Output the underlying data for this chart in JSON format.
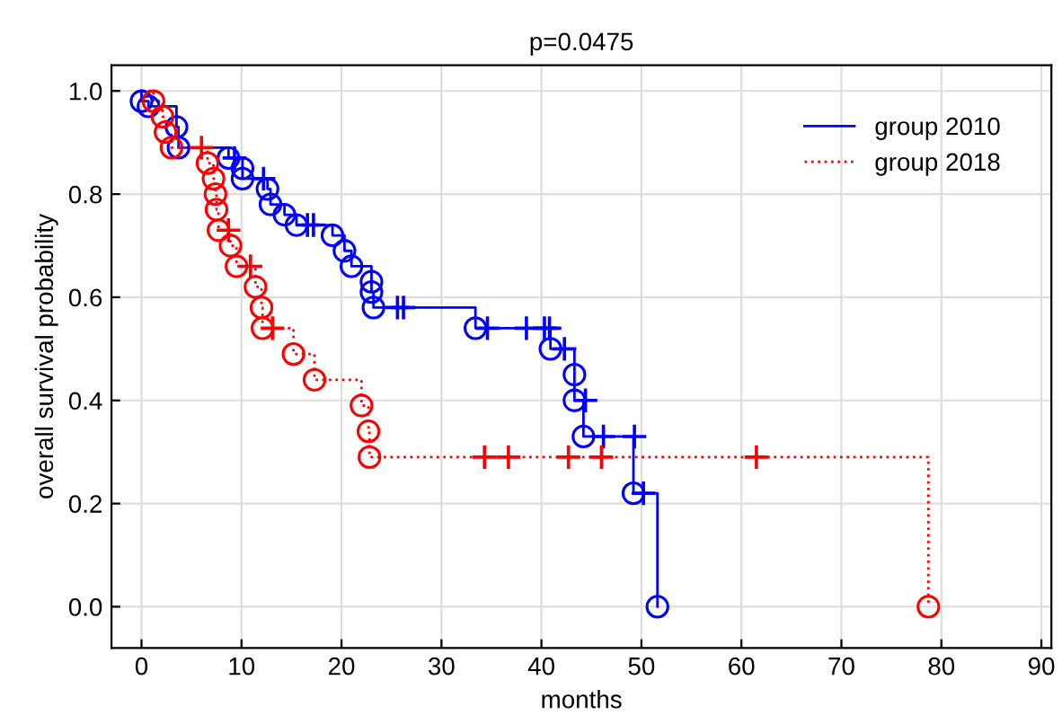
{
  "chart_data": {
    "type": "step",
    "title": "p=0.0475",
    "xlabel": "months",
    "ylabel": "overall survival probability",
    "xlim": [
      -3,
      91
    ],
    "ylim": [
      -0.08,
      1.05
    ],
    "xticks": [
      0,
      10,
      20,
      30,
      40,
      50,
      60,
      70,
      80,
      90
    ],
    "yticks": [
      {
        "value": 0,
        "label": "0.0"
      },
      {
        "value": 0.2,
        "label": "0.2"
      },
      {
        "value": 0.4,
        "label": "0.4"
      },
      {
        "value": 0.6,
        "label": "0.6"
      },
      {
        "value": 0.8,
        "label": "0.8"
      },
      {
        "value": 1,
        "label": "1.0"
      }
    ],
    "grid": true,
    "legend": "top right",
    "series": [
      {
        "name": "group 2010",
        "color": "#0000ff",
        "line_style": "solid",
        "marker": "none",
        "x": [
          0,
          0,
          0.7,
          3.5,
          3.7,
          8.7,
          10.1,
          10.1,
          12.6,
          12.9,
          14.3,
          15.5,
          19.1,
          20.3,
          21,
          23,
          23,
          23.2,
          33.4,
          40.9,
          43.3,
          43.3,
          44.2,
          49.2,
          51.6,
          51.6
        ],
        "values": [
          1.0,
          0.98,
          0.97,
          0.93,
          0.89,
          0.87,
          0.85,
          0.83,
          0.81,
          0.78,
          0.76,
          0.74,
          0.72,
          0.69,
          0.66,
          0.63,
          0.61,
          0.58,
          0.54,
          0.5,
          0.45,
          0.4,
          0.33,
          0.22,
          0.0,
          0.0
        ]
      },
      {
        "name": "group 2018",
        "color": "#ff0000",
        "line_style": "dotted",
        "marker": "none",
        "x": [
          0,
          1.2,
          2.1,
          2.4,
          3.0,
          6.6,
          7.2,
          7.4,
          7.5,
          7.7,
          8.9,
          9.5,
          11.4,
          12.0,
          12.1,
          15.2,
          17.3,
          22.0,
          22.7,
          22.8,
          78.7,
          78.7
        ],
        "values": [
          1.0,
          0.98,
          0.95,
          0.92,
          0.89,
          0.86,
          0.83,
          0.8,
          0.77,
          0.73,
          0.7,
          0.66,
          0.62,
          0.58,
          0.54,
          0.49,
          0.44,
          0.39,
          0.34,
          0.29,
          0.0,
          0.0
        ]
      },
      {
        "type": "scatter",
        "color": "#0000ff",
        "marker": "circle",
        "x": [
          0,
          0.7,
          3.5,
          3.7,
          8.7,
          10.1,
          10.1,
          12.6,
          12.9,
          14.3,
          15.5,
          19.1,
          20.3,
          21,
          23,
          23,
          23.2,
          33.4,
          40.9,
          43.3,
          43.3,
          44.2,
          49.2,
          51.6
        ],
        "values": [
          0.98,
          0.97,
          0.93,
          0.89,
          0.87,
          0.85,
          0.83,
          0.81,
          0.78,
          0.76,
          0.74,
          0.72,
          0.69,
          0.66,
          0.63,
          0.61,
          0.58,
          0.54,
          0.5,
          0.45,
          0.4,
          0.33,
          0.22,
          0.0
        ]
      },
      {
        "type": "scatter",
        "color": "#0000ff",
        "marker": "cross",
        "x": [
          9.3,
          12.2,
          16.6,
          17.2,
          25.6,
          26.2,
          34.6,
          38.5,
          40.3,
          40.8,
          42.3,
          44.4,
          46.2,
          49.3,
          50.2
        ],
        "values": [
          0.87,
          0.83,
          0.74,
          0.74,
          0.58,
          0.58,
          0.54,
          0.54,
          0.54,
          0.54,
          0.5,
          0.4,
          0.33,
          0.33,
          0.22
        ]
      },
      {
        "type": "scatter",
        "color": "#ff0000",
        "marker": "circle",
        "x": [
          1.2,
          2.1,
          2.4,
          3.0,
          6.6,
          7.2,
          7.4,
          7.5,
          7.7,
          8.9,
          9.5,
          11.4,
          12.0,
          12.1,
          15.2,
          17.3,
          22.0,
          22.7,
          22.8,
          78.7
        ],
        "values": [
          0.98,
          0.95,
          0.92,
          0.89,
          0.86,
          0.83,
          0.8,
          0.77,
          0.73,
          0.7,
          0.66,
          0.62,
          0.58,
          0.54,
          0.49,
          0.44,
          0.39,
          0.34,
          0.29,
          0.0
        ]
      },
      {
        "type": "scatter",
        "color": "#ff0000",
        "marker": "cross",
        "x": [
          6.0,
          8.7,
          10.9,
          13.1,
          34.3,
          36.7,
          42.7,
          46.0,
          61.5
        ],
        "values": [
          0.89,
          0.73,
          0.66,
          0.54,
          0.29,
          0.29,
          0.29,
          0.29,
          0.29
        ]
      }
    ]
  }
}
